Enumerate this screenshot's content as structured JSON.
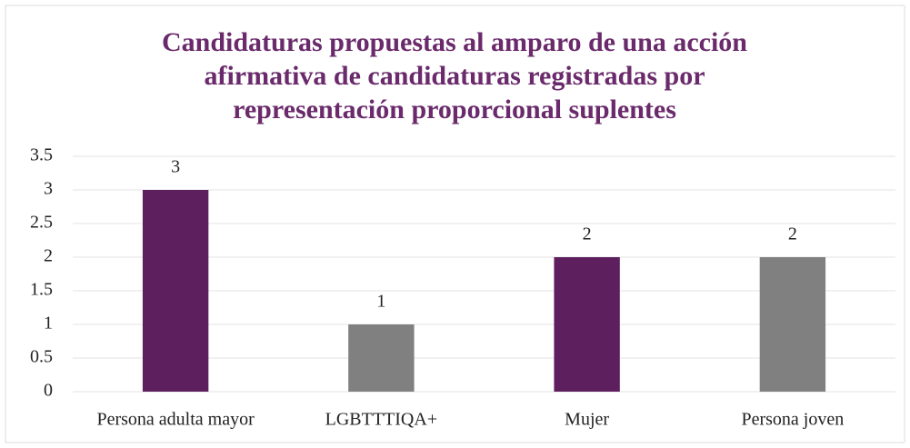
{
  "chart_data": {
    "type": "bar",
    "title": "Candidaturas propuestas al amparo de una acción afirmativa de candidaturas registradas por representación proporcional suplentes",
    "categories": [
      "Persona adulta mayor",
      "LGBTTTIQA+",
      "Mujer",
      "Persona joven"
    ],
    "values": [
      3,
      1,
      2,
      2
    ],
    "colors": [
      "#5e1f5e",
      "#808080",
      "#5e1f5e",
      "#808080"
    ],
    "ylim": [
      0,
      3.5
    ],
    "yticks": [
      0,
      0.5,
      1,
      1.5,
      2,
      2.5,
      3,
      3.5
    ],
    "grid": true
  }
}
